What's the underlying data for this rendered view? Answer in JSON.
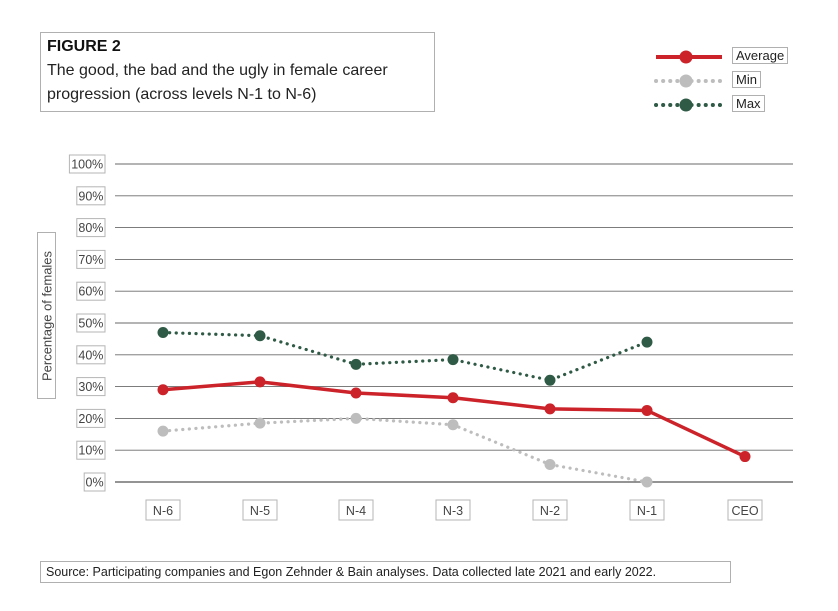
{
  "figure": {
    "label": "FIGURE 2",
    "title": "The good, the bad and the ugly in female career progression (across levels N-1 to N-6)"
  },
  "source": "Source: Participating companies and Egon Zehnder & Bain analyses. Data collected late 2021 and early 2022.",
  "chart_data": {
    "type": "line",
    "title": "The good, the bad and the ugly in female career progression (across levels N-1 to N-6)",
    "ylabel": "Percentage of females",
    "xlabel": "",
    "categories": [
      "N-6",
      "N-5",
      "N-4",
      "N-3",
      "N-2",
      "N-1",
      "CEO"
    ],
    "yticks": [
      "0%",
      "10%",
      "20%",
      "30%",
      "40%",
      "50%",
      "60%",
      "70%",
      "80%",
      "90%",
      "100%"
    ],
    "ylim": [
      0,
      100
    ],
    "grid": true,
    "legend_position": "top-right",
    "series": [
      {
        "name": "Average",
        "color": "#cc2229",
        "style": "solid",
        "values": [
          29,
          31.5,
          28,
          26.5,
          23,
          22.5,
          8
        ]
      },
      {
        "name": "Min",
        "color": "#bdbdbd",
        "style": "dotted",
        "values": [
          16,
          18.5,
          20,
          18,
          5.5,
          0,
          null
        ]
      },
      {
        "name": "Max",
        "color": "#2f5a45",
        "style": "dotted",
        "values": [
          47,
          46,
          37,
          38.5,
          32,
          44,
          null
        ]
      }
    ]
  }
}
